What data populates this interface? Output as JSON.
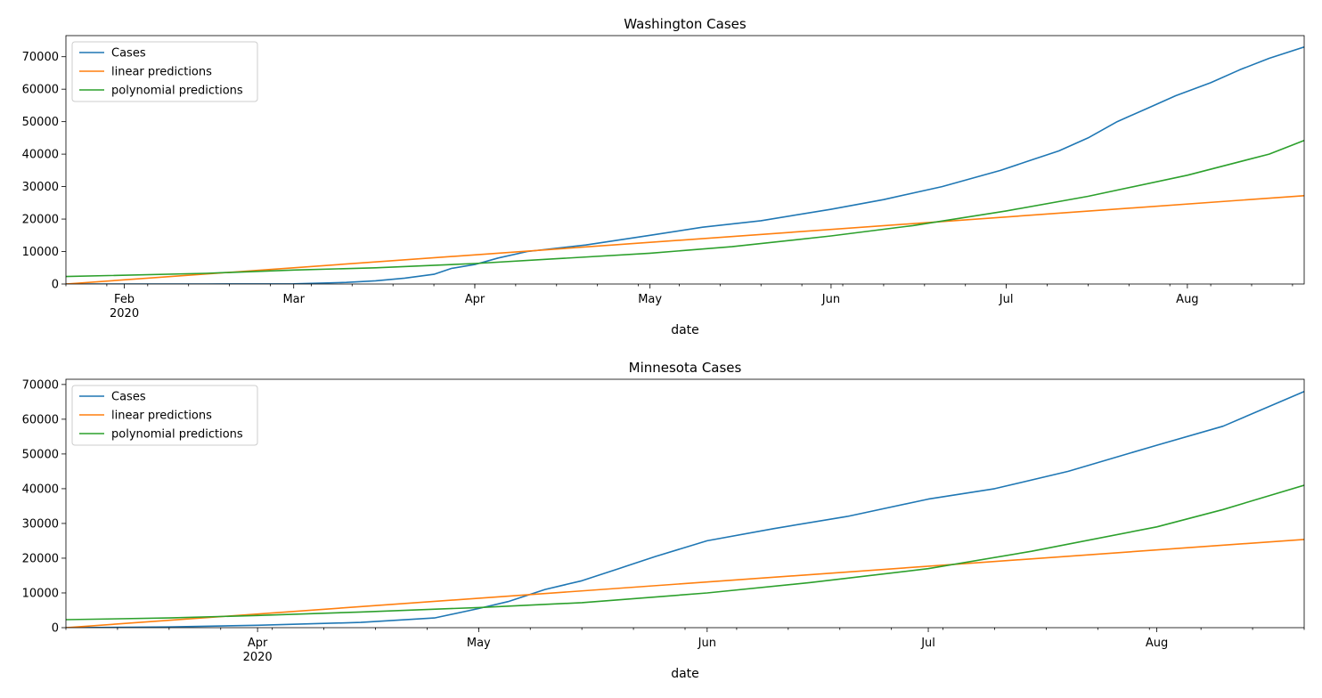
{
  "chart_data": [
    {
      "type": "line",
      "title": "Washington Cases",
      "xlabel": "date",
      "ylabel": "",
      "xlim": [
        "2020-01-22",
        "2020-08-21"
      ],
      "ylim": [
        0,
        76500
      ],
      "yticks": [
        0,
        10000,
        20000,
        30000,
        40000,
        50000,
        60000,
        70000
      ],
      "xticks": [
        {
          "date": "2020-02-01",
          "label": "Feb",
          "sublabel": "2020"
        },
        {
          "date": "2020-03-01",
          "label": "Mar"
        },
        {
          "date": "2020-04-01",
          "label": "Apr"
        },
        {
          "date": "2020-05-01",
          "label": "May"
        },
        {
          "date": "2020-06-01",
          "label": "Jun"
        },
        {
          "date": "2020-07-01",
          "label": "Jul"
        },
        {
          "date": "2020-08-01",
          "label": "Aug"
        }
      ],
      "legend": "top-left",
      "grid": false,
      "series": [
        {
          "name": "Cases",
          "color": "#1f77b4",
          "points": [
            [
              "2020-01-22",
              0
            ],
            [
              "2020-02-15",
              0
            ],
            [
              "2020-03-01",
              50
            ],
            [
              "2020-03-10",
              500
            ],
            [
              "2020-03-15",
              1000
            ],
            [
              "2020-03-20",
              1800
            ],
            [
              "2020-03-25",
              3000
            ],
            [
              "2020-03-28",
              4800
            ],
            [
              "2020-04-01",
              6000
            ],
            [
              "2020-04-05",
              8000
            ],
            [
              "2020-04-10",
              10000
            ],
            [
              "2020-04-20",
              12000
            ],
            [
              "2020-05-01",
              15000
            ],
            [
              "2020-05-10",
              17500
            ],
            [
              "2020-05-20",
              19500
            ],
            [
              "2020-06-01",
              23000
            ],
            [
              "2020-06-10",
              26000
            ],
            [
              "2020-06-20",
              30000
            ],
            [
              "2020-06-30",
              35000
            ],
            [
              "2020-07-05",
              38000
            ],
            [
              "2020-07-10",
              41000
            ],
            [
              "2020-07-15",
              45000
            ],
            [
              "2020-07-20",
              50000
            ],
            [
              "2020-07-25",
              54000
            ],
            [
              "2020-07-30",
              58000
            ],
            [
              "2020-08-05",
              62000
            ],
            [
              "2020-08-10",
              66000
            ],
            [
              "2020-08-15",
              69500
            ],
            [
              "2020-08-21",
              73000
            ]
          ]
        },
        {
          "name": "linear predictions",
          "color": "#ff7f0e",
          "points": [
            [
              "2020-01-22",
              0
            ],
            [
              "2020-08-21",
              27200
            ]
          ]
        },
        {
          "name": "polynomial predictions",
          "color": "#2ca02c",
          "points": [
            [
              "2020-01-22",
              2300
            ],
            [
              "2020-02-15",
              3300
            ],
            [
              "2020-03-01",
              4300
            ],
            [
              "2020-03-15",
              5000
            ],
            [
              "2020-04-01",
              6300
            ],
            [
              "2020-04-15",
              7800
            ],
            [
              "2020-05-01",
              9500
            ],
            [
              "2020-05-15",
              11500
            ],
            [
              "2020-06-01",
              14800
            ],
            [
              "2020-06-15",
              18000
            ],
            [
              "2020-07-01",
              22500
            ],
            [
              "2020-07-15",
              27000
            ],
            [
              "2020-08-01",
              33500
            ],
            [
              "2020-08-15",
              40000
            ],
            [
              "2020-08-21",
              44200
            ]
          ]
        }
      ]
    },
    {
      "type": "line",
      "title": "Minnesota Cases",
      "xlabel": "date",
      "ylabel": "",
      "xlim": [
        "2020-03-06",
        "2020-08-21"
      ],
      "ylim": [
        0,
        71500
      ],
      "yticks": [
        0,
        10000,
        20000,
        30000,
        40000,
        50000,
        60000,
        70000
      ],
      "xticks": [
        {
          "date": "2020-04-01",
          "label": "Apr",
          "sublabel": "2020"
        },
        {
          "date": "2020-05-01",
          "label": "May"
        },
        {
          "date": "2020-06-01",
          "label": "Jun"
        },
        {
          "date": "2020-07-01",
          "label": "Jul"
        },
        {
          "date": "2020-08-01",
          "label": "Aug"
        }
      ],
      "legend": "top-left",
      "grid": false,
      "series": [
        {
          "name": "Cases",
          "color": "#1f77b4",
          "points": [
            [
              "2020-03-06",
              0
            ],
            [
              "2020-03-20",
              200
            ],
            [
              "2020-04-01",
              700
            ],
            [
              "2020-04-15",
              1500
            ],
            [
              "2020-04-25",
              2800
            ],
            [
              "2020-05-01",
              5500
            ],
            [
              "2020-05-05",
              7500
            ],
            [
              "2020-05-10",
              11000
            ],
            [
              "2020-05-15",
              13500
            ],
            [
              "2020-05-20",
              17000
            ],
            [
              "2020-05-25",
              20500
            ],
            [
              "2020-06-01",
              25000
            ],
            [
              "2020-06-10",
              28500
            ],
            [
              "2020-06-20",
              32000
            ],
            [
              "2020-07-01",
              37000
            ],
            [
              "2020-07-10",
              40000
            ],
            [
              "2020-07-20",
              45000
            ],
            [
              "2020-08-01",
              52500
            ],
            [
              "2020-08-10",
              58000
            ],
            [
              "2020-08-21",
              68000
            ]
          ]
        },
        {
          "name": "linear predictions",
          "color": "#ff7f0e",
          "points": [
            [
              "2020-03-06",
              0
            ],
            [
              "2020-08-21",
              25400
            ]
          ]
        },
        {
          "name": "polynomial predictions",
          "color": "#2ca02c",
          "points": [
            [
              "2020-03-06",
              2300
            ],
            [
              "2020-03-20",
              2800
            ],
            [
              "2020-04-01",
              3500
            ],
            [
              "2020-04-15",
              4500
            ],
            [
              "2020-05-01",
              5800
            ],
            [
              "2020-05-15",
              7200
            ],
            [
              "2020-06-01",
              10000
            ],
            [
              "2020-06-15",
              13000
            ],
            [
              "2020-07-01",
              17000
            ],
            [
              "2020-07-15",
              22000
            ],
            [
              "2020-08-01",
              29000
            ],
            [
              "2020-08-10",
              34000
            ],
            [
              "2020-08-21",
              41000
            ]
          ]
        }
      ]
    }
  ]
}
